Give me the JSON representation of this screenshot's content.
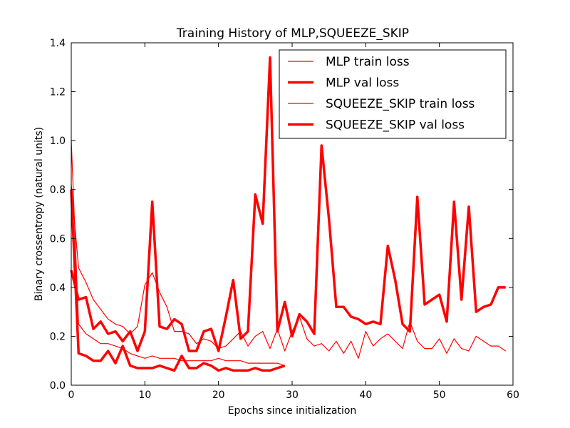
{
  "chart_data": {
    "type": "line",
    "title": "Training History of MLP,SQUEEZE_SKIP",
    "xlabel": "Epochs since initialization",
    "ylabel": "Binary crossentropy (natural units)",
    "xlim": [
      0,
      60
    ],
    "ylim": [
      0,
      1.4
    ],
    "xticks": [
      0,
      10,
      20,
      30,
      40,
      50,
      60
    ],
    "yticks": [
      0.0,
      0.2,
      0.4,
      0.6,
      0.8,
      1.0,
      1.2,
      1.4
    ],
    "x_tick_labels": [
      "0",
      "10",
      "20",
      "30",
      "40",
      "50",
      "60"
    ],
    "y_tick_labels": [
      "0.0",
      "0.2",
      "0.4",
      "0.6",
      "0.8",
      "1.0",
      "1.2",
      "1.4"
    ],
    "grid": false,
    "legend_position": "top-right",
    "series": [
      {
        "name": "MLP train loss",
        "color": "#ff0000",
        "style": "thin",
        "x": [
          0,
          1,
          2,
          3,
          4,
          5,
          6,
          7,
          8,
          9,
          10,
          11,
          12,
          13,
          14,
          15,
          16,
          17,
          18,
          19,
          20,
          21,
          22,
          23,
          24,
          25,
          26,
          27,
          28,
          29,
          30,
          31,
          32,
          33,
          34,
          35,
          36,
          37,
          38,
          39,
          40,
          41,
          42,
          43,
          44,
          45,
          46,
          47,
          48,
          49,
          50,
          51,
          52,
          53,
          54,
          55,
          56,
          57,
          58,
          59
        ],
        "values": [
          0.82,
          0.48,
          0.42,
          0.35,
          0.31,
          0.27,
          0.25,
          0.24,
          0.21,
          0.24,
          0.41,
          0.46,
          0.38,
          0.32,
          0.22,
          0.22,
          0.21,
          0.17,
          0.19,
          0.18,
          0.15,
          0.16,
          0.19,
          0.22,
          0.16,
          0.2,
          0.22,
          0.15,
          0.23,
          0.14,
          0.22,
          0.28,
          0.19,
          0.16,
          0.17,
          0.14,
          0.18,
          0.13,
          0.18,
          0.11,
          0.22,
          0.16,
          0.19,
          0.21,
          0.18,
          0.15,
          0.26,
          0.18,
          0.15,
          0.15,
          0.19,
          0.13,
          0.19,
          0.15,
          0.14,
          0.2,
          0.18,
          0.16,
          0.16,
          0.14
        ]
      },
      {
        "name": "MLP val loss",
        "color": "#ff0000",
        "style": "thick",
        "x": [
          0,
          1,
          2,
          3,
          4,
          5,
          6,
          7,
          8,
          9,
          10,
          11,
          12,
          13,
          14,
          15,
          16,
          17,
          18,
          19,
          20,
          21,
          22,
          23,
          24,
          25,
          26,
          27,
          28,
          29,
          30,
          31,
          32,
          33,
          34,
          35,
          36,
          37,
          38,
          39,
          40,
          41,
          42,
          43,
          44,
          45,
          46,
          47,
          48,
          49,
          50,
          51,
          52,
          53,
          54,
          55,
          56,
          57,
          58,
          59
        ],
        "values": [
          0.47,
          0.35,
          0.36,
          0.23,
          0.26,
          0.21,
          0.22,
          0.18,
          0.22,
          0.14,
          0.22,
          0.75,
          0.24,
          0.23,
          0.27,
          0.25,
          0.14,
          0.14,
          0.22,
          0.23,
          0.14,
          0.28,
          0.43,
          0.19,
          0.22,
          0.78,
          0.66,
          1.34,
          0.22,
          0.34,
          0.2,
          0.29,
          0.26,
          0.21,
          0.98,
          0.68,
          0.32,
          0.32,
          0.28,
          0.27,
          0.25,
          0.26,
          0.25,
          0.57,
          0.43,
          0.25,
          0.22,
          0.77,
          0.33,
          0.35,
          0.37,
          0.26,
          0.75,
          0.35,
          0.73,
          0.3,
          0.32,
          0.33,
          0.4,
          0.4
        ]
      },
      {
        "name": "SQUEEZE_SKIP train loss",
        "color": "#ff0000",
        "style": "thin",
        "x": [
          0,
          1,
          2,
          3,
          4,
          5,
          6,
          7,
          8,
          9,
          10,
          11,
          12,
          13,
          14,
          15,
          16,
          17,
          18,
          19,
          20,
          21,
          22,
          23,
          24,
          25,
          26,
          27,
          28,
          29
        ],
        "values": [
          1.0,
          0.25,
          0.21,
          0.19,
          0.17,
          0.17,
          0.16,
          0.15,
          0.13,
          0.12,
          0.11,
          0.12,
          0.11,
          0.11,
          0.11,
          0.1,
          0.1,
          0.1,
          0.1,
          0.1,
          0.11,
          0.1,
          0.1,
          0.1,
          0.09,
          0.09,
          0.09,
          0.09,
          0.09,
          0.08
        ]
      },
      {
        "name": "SQUEEZE_SKIP val loss",
        "color": "#ff0000",
        "style": "thick",
        "x": [
          0,
          1,
          2,
          3,
          4,
          5,
          6,
          7,
          8,
          9,
          10,
          11,
          12,
          13,
          14,
          15,
          16,
          17,
          18,
          19,
          20,
          21,
          22,
          23,
          24,
          25,
          26,
          27,
          28,
          29
        ],
        "values": [
          0.8,
          0.13,
          0.12,
          0.1,
          0.1,
          0.14,
          0.09,
          0.16,
          0.08,
          0.07,
          0.07,
          0.07,
          0.08,
          0.07,
          0.06,
          0.12,
          0.07,
          0.07,
          0.09,
          0.08,
          0.06,
          0.07,
          0.06,
          0.06,
          0.06,
          0.07,
          0.06,
          0.06,
          0.07,
          0.08
        ]
      }
    ]
  }
}
